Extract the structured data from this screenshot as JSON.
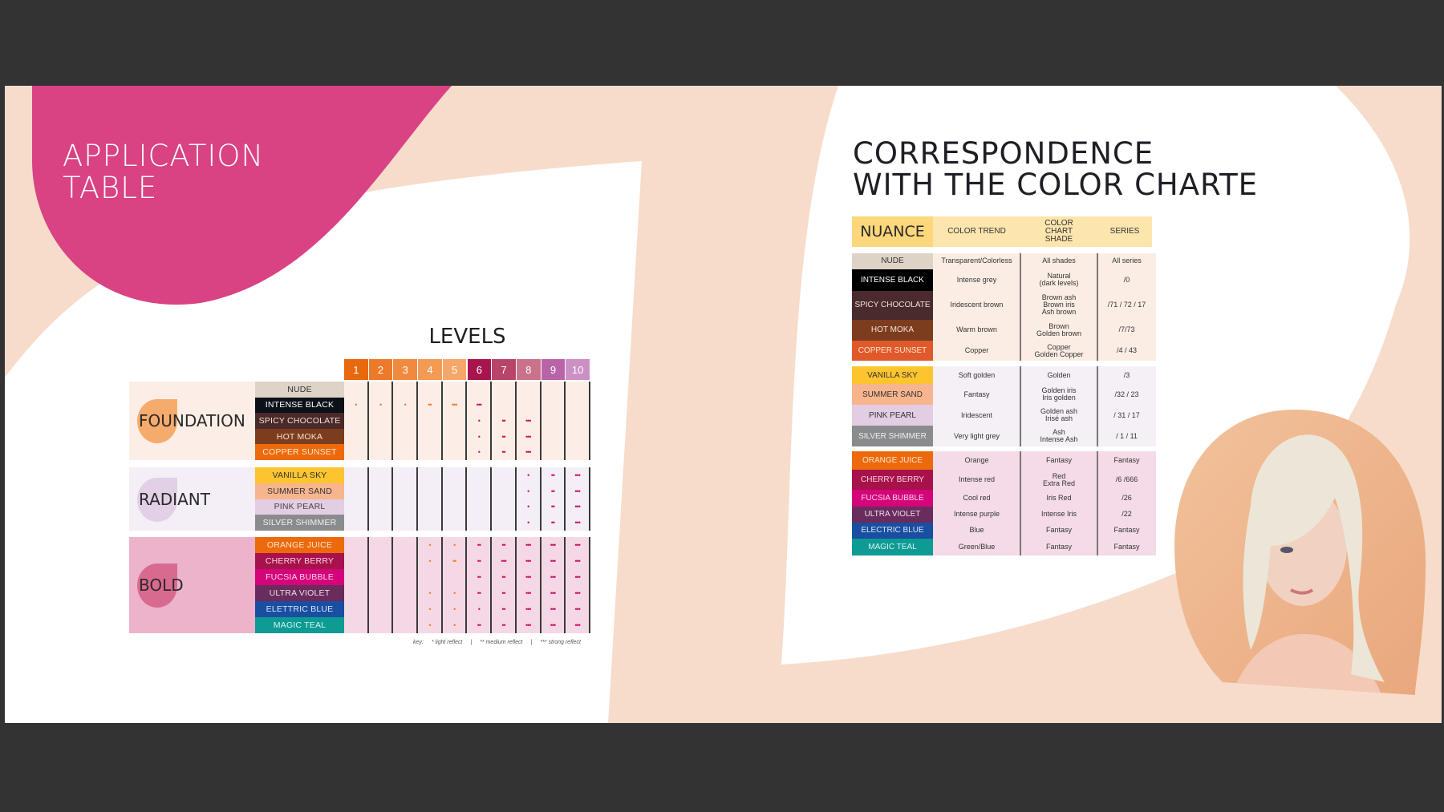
{
  "left": {
    "title": "APPLICATION\nTABLE",
    "levels_title": "LEVELS",
    "levels": [
      {
        "label": "1",
        "color": "#e8680e"
      },
      {
        "label": "2",
        "color": "#ec7a2a"
      },
      {
        "label": "3",
        "color": "#f08a3e"
      },
      {
        "label": "4",
        "color": "#f39a55"
      },
      {
        "label": "5",
        "color": "#f5a76a"
      },
      {
        "label": "6",
        "color": "#a8154e"
      },
      {
        "label": "7",
        "color": "#b8446a"
      },
      {
        "label": "8",
        "color": "#c97289"
      },
      {
        "label": "9",
        "color": "#b964a8"
      },
      {
        "label": "10",
        "color": "#cc90c4"
      }
    ],
    "groups": [
      {
        "label": "FOUNDATION",
        "bg": "#fceee6",
        "drop": "#f39a4c",
        "rows": [
          {
            "name": "NUDE",
            "color": "#ddd3c7",
            "text": "#333",
            "marks": [
              "",
              "",
              "",
              "",
              "",
              "",
              "",
              "",
              "",
              ""
            ]
          },
          {
            "name": "INTENSE BLACK",
            "color": "#0b1118",
            "text": "#fff",
            "marks": [
              "•",
              "•",
              "•",
              "••",
              "•••",
              "•••",
              "",
              "",
              "",
              ""
            ]
          },
          {
            "name": "SPICY CHOCOLATE",
            "color": "#4a2a28",
            "text": "#f0e0da",
            "marks": [
              "",
              "",
              "",
              "",
              "",
              "•",
              "••",
              "•••",
              "",
              ""
            ]
          },
          {
            "name": "HOT MOKA",
            "color": "#7c3d1e",
            "text": "#f6e2d6",
            "marks": [
              "",
              "",
              "",
              "",
              "",
              "•",
              "••",
              "•••",
              "",
              ""
            ]
          },
          {
            "name": "COPPER SUNSET",
            "color": "#ec6a0c",
            "text": "#ffe6d2",
            "marks": [
              "",
              "",
              "",
              "",
              "",
              "•",
              "••",
              "•••",
              "",
              ""
            ]
          }
        ]
      },
      {
        "label": "RADIANT",
        "bg": "#f4eef6",
        "drop": "#dcc8e2",
        "rows": [
          {
            "name": "VANILLA SKY",
            "color": "#fcc42e",
            "text": "#333",
            "marks": [
              "",
              "",
              "",
              "",
              "",
              "",
              "",
              "•",
              "••",
              "•••"
            ]
          },
          {
            "name": "SUMMER SAND",
            "color": "#f7b58e",
            "text": "#333",
            "marks": [
              "",
              "",
              "",
              "",
              "",
              "",
              "",
              "•",
              "••",
              "•••"
            ]
          },
          {
            "name": "PINK PEARL",
            "color": "#e3cde3",
            "text": "#444",
            "marks": [
              "",
              "",
              "",
              "",
              "",
              "",
              "",
              "•",
              "••",
              "•••"
            ]
          },
          {
            "name": "SILVER SHIMMER",
            "color": "#8a8b8d",
            "text": "#f0f0f0",
            "marks": [
              "",
              "",
              "",
              "",
              "",
              "",
              "",
              "•",
              "••",
              "•••"
            ]
          }
        ]
      },
      {
        "label": "BOLD",
        "bg": "#f5d8e6",
        "labelbg": "#ecb3cb",
        "drop": "#d4577f",
        "rows": [
          {
            "name": "ORANGE JUICE",
            "color": "#ec6a0c",
            "text": "#ffe6d2",
            "marks": [
              "",
              "",
              "",
              "•",
              "•",
              "••",
              "••",
              "•••",
              "•••",
              "•••"
            ]
          },
          {
            "name": "CHERRY BERRY",
            "color": "#a8124c",
            "text": "#f6d6e2",
            "marks": [
              "",
              "",
              "",
              "•",
              "••",
              "••",
              "•••",
              "•••",
              "•••",
              "•••"
            ]
          },
          {
            "name": "FUCSIA BUBBLE",
            "color": "#d4047a",
            "text": "#fbd6ea",
            "marks": [
              "",
              "",
              "",
              "",
              "",
              "••",
              "••",
              "•••",
              "•••",
              "•••"
            ]
          },
          {
            "name": "ULTRA VIOLET",
            "color": "#6a2c5c",
            "text": "#f0dcec",
            "marks": [
              "",
              "",
              "",
              "•",
              "•",
              "••",
              "••",
              "•••",
              "•••",
              "•••"
            ]
          },
          {
            "name": "ELETTRIC BLUE",
            "color": "#1a4ea0",
            "text": "#dce6f6",
            "marks": [
              "",
              "",
              "",
              "•",
              "•",
              "•",
              "••",
              "•••",
              "•••",
              "•••"
            ]
          },
          {
            "name": "MAGIC TEAL",
            "color": "#0e9b94",
            "text": "#d6f4f2",
            "marks": [
              "",
              "",
              "",
              "•",
              "•",
              "••",
              "••",
              "•••",
              "•••",
              "•••"
            ]
          }
        ]
      }
    ],
    "key": {
      "label": "key:",
      "light": "* light reflect",
      "medium": "** medium reflect",
      "strong": "*** strong reflect",
      "sep": "|"
    }
  },
  "right": {
    "title": "CORRESPONDENCE\nWITH THE COLOR CHARTE",
    "headers": [
      "NUANCE",
      "COLOR TREND",
      "COLOR\nCHART\nSHADE",
      "SERIES"
    ],
    "groups": [
      {
        "bg": "#fcede4",
        "rows": [
          {
            "name": "NUDE",
            "color": "#ddd3c7",
            "text": "#333",
            "trend": "Transparent/Colorless",
            "shade": "All shades",
            "series": "All series"
          },
          {
            "name": "INTENSE BLACK",
            "color": "#000000",
            "text": "#fff",
            "trend": "Intense grey",
            "shade": "Natural\n(dark levels)",
            "series": "/0"
          },
          {
            "name": "SPICY CHOCOLATE",
            "color": "#4a2a2c",
            "text": "#f0e0da",
            "trend": "Iridescent brown",
            "shade": "Brown ash\nBrown iris\nAsh brown",
            "series": "/71 / 72 / 17"
          },
          {
            "name": "HOT MOKA",
            "color": "#7c3d1e",
            "text": "#f6e2d6",
            "trend": "Warm brown",
            "shade": "Brown\nGolden brown",
            "series": "/7/73"
          },
          {
            "name": "COPPER SUNSET",
            "color": "#e0592a",
            "text": "#ffe6d2",
            "trend": "Copper",
            "shade": "Copper\nGolden Copper",
            "series": "/4 / 43"
          }
        ]
      },
      {
        "bg": "#f5eff6",
        "rows": [
          {
            "name": "VANILLA SKY",
            "color": "#fcc42e",
            "text": "#333",
            "trend": "Soft golden",
            "shade": "Golden",
            "series": "/3"
          },
          {
            "name": "SUMMER SAND",
            "color": "#f7b58e",
            "text": "#333",
            "trend": "Fantasy",
            "shade": "Golden iris\nIris golden",
            "series": "/32 / 23"
          },
          {
            "name": "PINK PEARL",
            "color": "#e3cde3",
            "text": "#333",
            "trend": "Iridescent",
            "shade": "Golden ash\nIrisé ash",
            "series": "/ 31 / 17"
          },
          {
            "name": "SILVER SHIMMER",
            "color": "#8a8b8d",
            "text": "#f0f0f0",
            "trend": "Very light grey",
            "shade": "Ash\nIntense Ash",
            "series": "/ 1 / 11"
          }
        ]
      },
      {
        "bg": "#f4dbe7",
        "rows": [
          {
            "name": "ORANGE JUICE",
            "color": "#ec6a0c",
            "text": "#ffe6d2",
            "trend": "Orange",
            "shade": "Fantasy",
            "series": "Fantasy"
          },
          {
            "name": "CHERRY BERRY",
            "color": "#a8124c",
            "text": "#f6d6e2",
            "trend": "Intense red",
            "shade": "Red\nExtra Red",
            "series": "/6 /666"
          },
          {
            "name": "FUCSIA BUBBLE",
            "color": "#d4047a",
            "text": "#fbd6ea",
            "trend": "Cool red",
            "shade": "Iris Red",
            "series": "/26"
          },
          {
            "name": "ULTRA VIOLET",
            "color": "#6a2c5c",
            "text": "#f0dcec",
            "trend": "Intense purple",
            "shade": "Intense Iris",
            "series": "/22"
          },
          {
            "name": "ELECTRIC BLUE",
            "color": "#1a4ea0",
            "text": "#dce6f6",
            "trend": "Blue",
            "shade": "Fantasy",
            "series": "Fantasy"
          },
          {
            "name": "MAGIC TEAL",
            "color": "#0e9b94",
            "text": "#d6f4f2",
            "trend": "Green/Blue",
            "shade": "Fantasy",
            "series": "Fantasy"
          }
        ]
      }
    ]
  },
  "colors": {
    "peach": "#f7dccb",
    "pink_blob": "#d94283",
    "dot_orange": "#f07f2a",
    "dot_pink": "#d4106a"
  }
}
